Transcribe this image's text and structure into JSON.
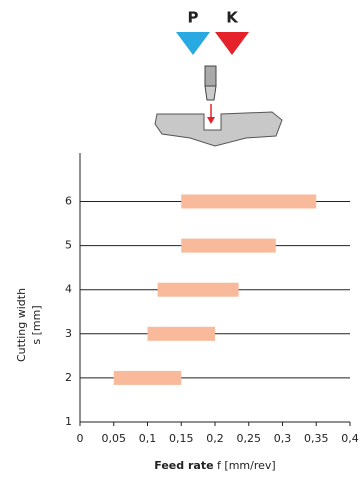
{
  "header": {
    "left_label": "P",
    "right_label": "K"
  },
  "chart_data": {
    "type": "range_bar",
    "ylabel": [
      "Cutting width",
      "s [mm]"
    ],
    "xlabel": {
      "bold": "Feed rate",
      "text": "f [mm/rev]"
    },
    "y": [
      2,
      3,
      4,
      5,
      6
    ],
    "low": [
      0.05,
      0.1,
      0.115,
      0.15,
      0.15
    ],
    "high": [
      0.15,
      0.2,
      0.235,
      0.29,
      0.35
    ],
    "color": "#f9b99b",
    "xlim": [
      0,
      0.4
    ],
    "xticks": [
      0,
      {
        "value": 0.05,
        "label": "0,05"
      },
      {
        "value": 0.1,
        "label": "0,1"
      },
      {
        "value": 0.15,
        "label": "0,15"
      },
      {
        "value": 0.2,
        "label": "0,2"
      },
      {
        "value": 0.25,
        "label": "0,25"
      },
      {
        "value": 0.3,
        "label": "0,3"
      },
      {
        "value": 0.35,
        "label": "0,35"
      },
      {
        "value": 0.4,
        "label": "0,4"
      }
    ],
    "ylim": [
      1,
      7.1
    ],
    "yticks": [
      1,
      2,
      3,
      4,
      5,
      6
    ],
    "grid": true
  }
}
